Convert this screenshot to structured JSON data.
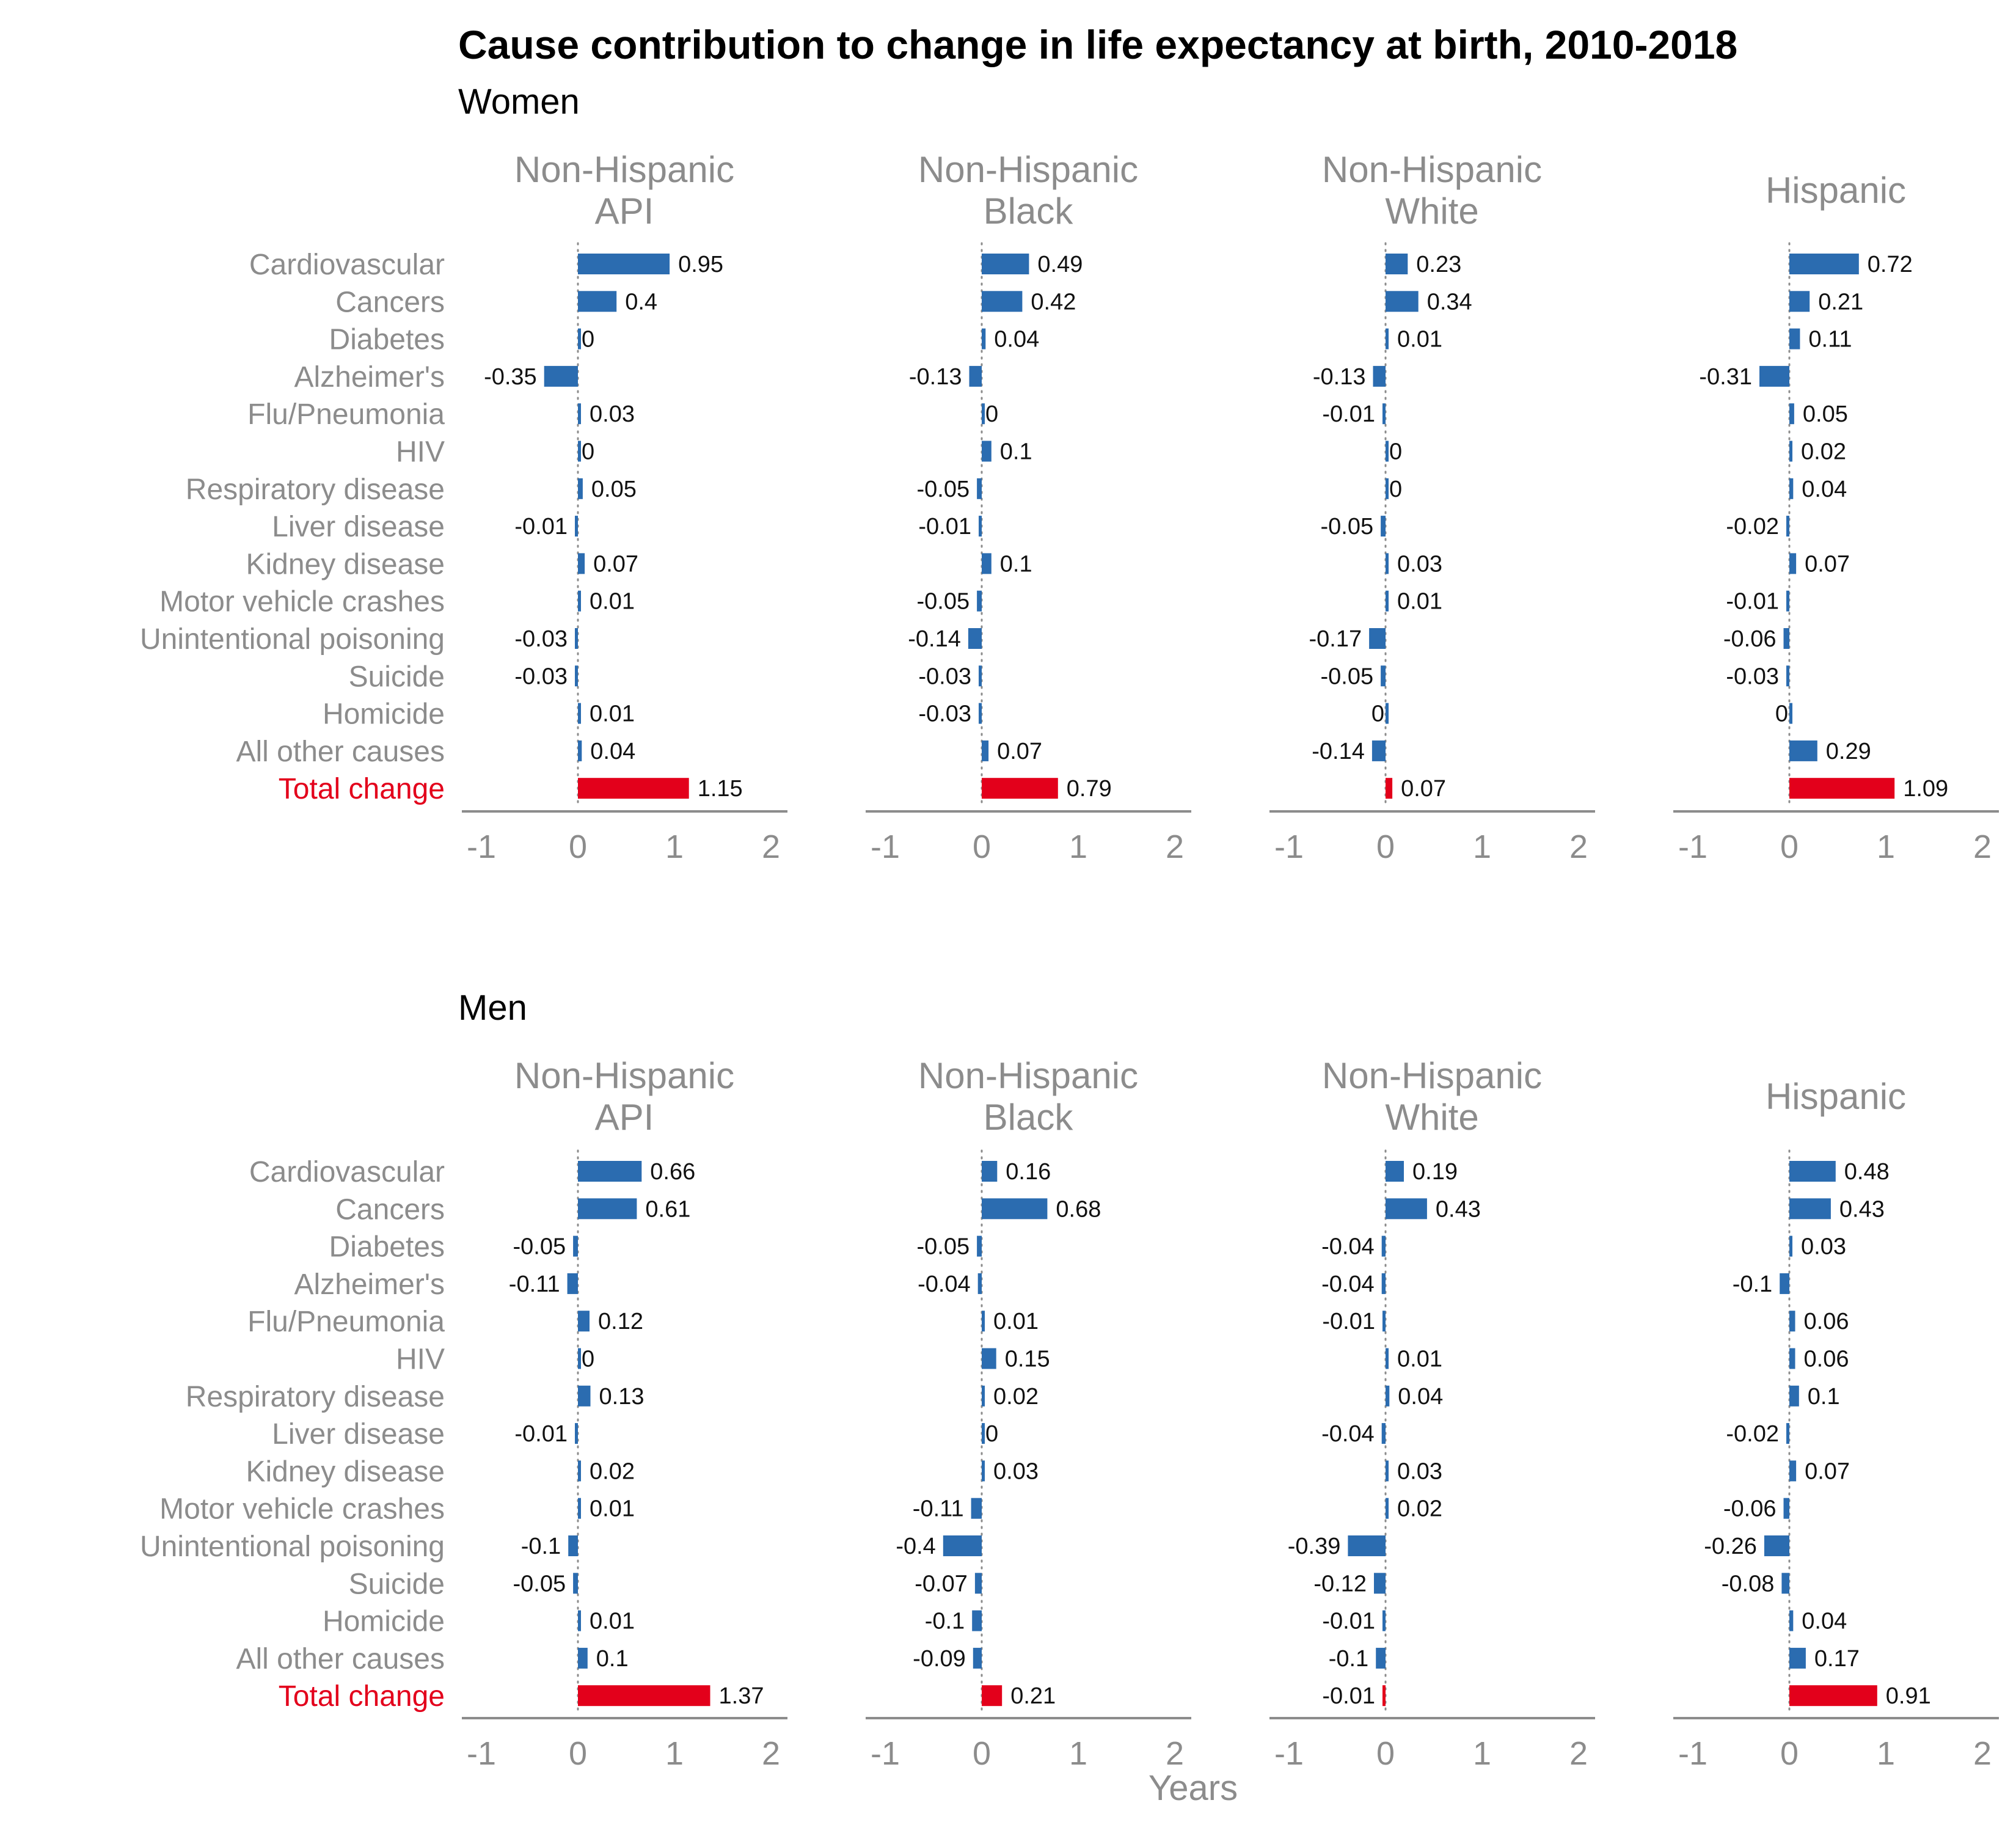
{
  "title": "Cause contribution to change in life expectancy at birth, 2010-2018",
  "xlabel": "Years",
  "colors": {
    "bar": "#2b6cb0",
    "total": "#e3001b",
    "axis": "#8c8c8c",
    "zero_line": "#8c8c8c",
    "total_label": "#e3001b"
  },
  "chart_data": {
    "type": "bar",
    "orientation": "horizontal",
    "xlim": [
      -1.2,
      2.1
    ],
    "xticks": [
      "-1",
      "0",
      "1",
      "2"
    ],
    "xtick_values": [
      -1,
      0,
      1,
      2
    ],
    "categories": [
      "Cardiovascular",
      "Cancers",
      "Diabetes",
      "Alzheimer's",
      "Flu/Pneumonia",
      "HIV",
      "Respiratory disease",
      "Liver disease",
      "Kidney disease",
      "Motor vehicle crashes",
      "Unintentional poisoning",
      "Suicide",
      "Homicide",
      "All other causes",
      "Total change"
    ],
    "sections": [
      {
        "name": "Women",
        "panels": [
          {
            "name": "Non-Hispanic API",
            "title_lines": [
              "Non-Hispanic",
              "API"
            ],
            "values": [
              0.95,
              0.4,
              0,
              -0.35,
              0.03,
              0,
              0.05,
              -0.01,
              0.07,
              0.01,
              -0.03,
              -0.03,
              0.01,
              0.04,
              1.15
            ]
          },
          {
            "name": "Non-Hispanic Black",
            "title_lines": [
              "Non-Hispanic",
              "Black"
            ],
            "values": [
              0.49,
              0.42,
              0.04,
              -0.13,
              0,
              0.1,
              -0.05,
              -0.01,
              0.1,
              -0.05,
              -0.14,
              -0.03,
              -0.03,
              0.07,
              0.79
            ]
          },
          {
            "name": "Non-Hispanic White",
            "title_lines": [
              "Non-Hispanic",
              "White"
            ],
            "values": [
              0.23,
              0.34,
              0.01,
              -0.13,
              -0.01,
              0,
              0,
              -0.05,
              0.03,
              0.01,
              -0.17,
              -0.05,
              0,
              -0.14,
              0.07
            ]
          },
          {
            "name": "Hispanic",
            "title_lines": [
              "Hispanic"
            ],
            "values": [
              0.72,
              0.21,
              0.11,
              -0.31,
              0.05,
              0.02,
              0.04,
              -0.02,
              0.07,
              -0.01,
              -0.06,
              -0.03,
              0,
              0.29,
              1.09
            ]
          }
        ]
      },
      {
        "name": "Men",
        "panels": [
          {
            "name": "Non-Hispanic API",
            "title_lines": [
              "Non-Hispanic",
              "API"
            ],
            "values": [
              0.66,
              0.61,
              -0.05,
              -0.11,
              0.12,
              0,
              0.13,
              -0.01,
              0.02,
              0.01,
              -0.1,
              -0.05,
              0.01,
              0.1,
              1.37
            ]
          },
          {
            "name": "Non-Hispanic Black",
            "title_lines": [
              "Non-Hispanic",
              "Black"
            ],
            "values": [
              0.16,
              0.68,
              -0.05,
              -0.04,
              0.01,
              0.15,
              0.02,
              0,
              0.03,
              -0.11,
              -0.4,
              -0.07,
              -0.1,
              -0.09,
              0.21
            ]
          },
          {
            "name": "Non-Hispanic White",
            "title_lines": [
              "Non-Hispanic",
              "White"
            ],
            "values": [
              0.19,
              0.43,
              -0.04,
              -0.04,
              -0.01,
              0.01,
              0.04,
              -0.04,
              0.03,
              0.02,
              -0.39,
              -0.12,
              -0.01,
              -0.1,
              -0.01
            ]
          },
          {
            "name": "Hispanic",
            "title_lines": [
              "Hispanic"
            ],
            "values": [
              0.48,
              0.43,
              0.03,
              -0.1,
              0.06,
              0.06,
              0.1,
              -0.02,
              0.07,
              -0.06,
              -0.26,
              -0.08,
              0.04,
              0.17,
              0.91
            ]
          }
        ]
      }
    ]
  }
}
